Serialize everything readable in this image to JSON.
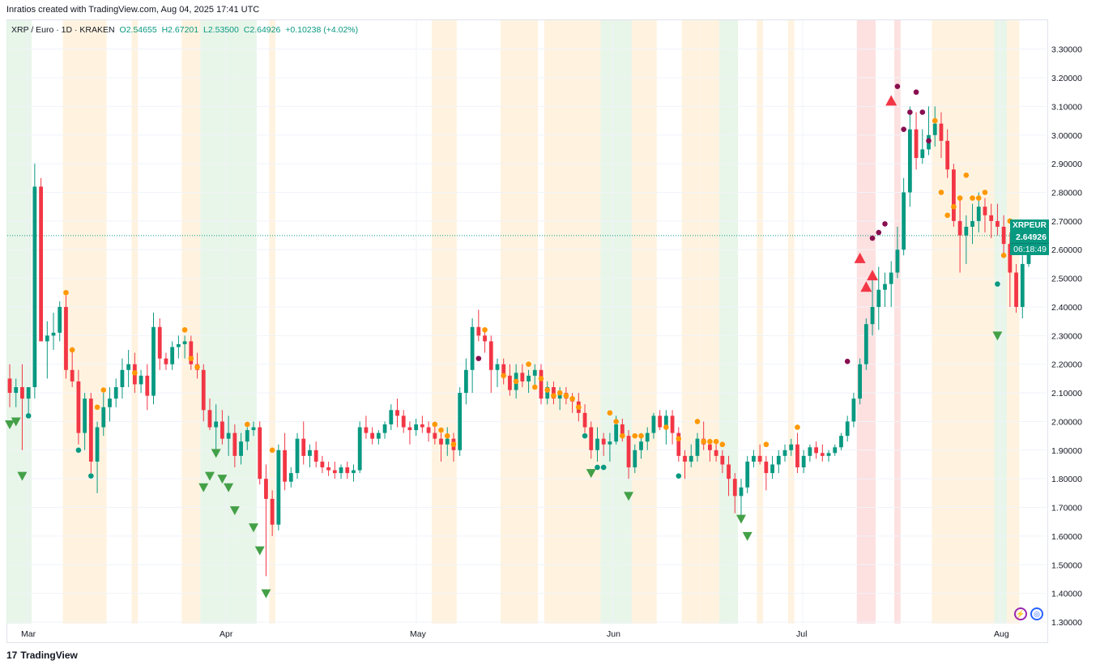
{
  "credit": "Inratios created with TradingView.com, Aug 04, 2025 17:41 UTC",
  "legend": {
    "symbol": "XRP / Euro · 1D · KRAKEN",
    "open": "O2.54655",
    "high": "H2.67201",
    "low": "L2.53500",
    "close": "C2.64926",
    "change": "+0.10238 (+4.02%)"
  },
  "price_tag": {
    "symbol": "XRPEUR",
    "price": "2.64926",
    "countdown": "06:18:49"
  },
  "footer": {
    "brand": "TradingView"
  },
  "colors": {
    "up": "#089981",
    "down": "#f23645",
    "bull_band": "#e8f5e9",
    "warn_band": "#fff3e0",
    "bear_band": "#fde0e0",
    "dot_orange": "#ff9800",
    "dot_purple": "#880e4f",
    "dot_green": "#089981",
    "tri_green": "#43a047",
    "tri_red": "#f23645"
  },
  "chart_data": {
    "type": "candlestick",
    "ylim": [
      1.3,
      3.35
    ],
    "price_ticks": [
      "3.30000",
      "3.20000",
      "3.10000",
      "3.00000",
      "2.90000",
      "2.80000",
      "2.70000",
      "2.60000",
      "2.50000",
      "2.40000",
      "2.30000",
      "2.20000",
      "2.10000",
      "2.00000",
      "1.90000",
      "1.80000",
      "1.70000",
      "1.60000",
      "1.50000",
      "1.40000",
      "1.30000"
    ],
    "months": [
      "Mar",
      "Apr",
      "May",
      "Jun",
      "Jul",
      "Aug"
    ],
    "current_price": 2.64926,
    "candles": [
      [
        2.15,
        2.2,
        2.05,
        2.1
      ],
      [
        2.1,
        2.15,
        2.05,
        2.12
      ],
      [
        2.12,
        2.2,
        1.9,
        2.08
      ],
      [
        2.08,
        2.12,
        2.02,
        2.12
      ],
      [
        2.12,
        2.9,
        2.08,
        2.82
      ],
      [
        2.82,
        2.85,
        2.3,
        2.28
      ],
      [
        2.28,
        2.35,
        2.15,
        2.3
      ],
      [
        2.3,
        2.38,
        2.25,
        2.31
      ],
      [
        2.31,
        2.42,
        2.28,
        2.4
      ],
      [
        2.4,
        2.44,
        2.15,
        2.18
      ],
      [
        2.18,
        2.26,
        2.12,
        2.14
      ],
      [
        2.14,
        2.18,
        1.92,
        1.96
      ],
      [
        1.96,
        2.1,
        1.9,
        2.08
      ],
      [
        2.08,
        2.1,
        1.82,
        1.86
      ],
      [
        1.86,
        2.0,
        1.75,
        1.98
      ],
      [
        1.98,
        2.1,
        1.95,
        2.05
      ],
      [
        2.05,
        2.12,
        2.0,
        2.08
      ],
      [
        2.08,
        2.15,
        2.05,
        2.12
      ],
      [
        2.12,
        2.22,
        2.08,
        2.18
      ],
      [
        2.18,
        2.25,
        2.12,
        2.2
      ],
      [
        2.2,
        2.24,
        2.1,
        2.13
      ],
      [
        2.13,
        2.18,
        2.1,
        2.16
      ],
      [
        2.16,
        2.2,
        2.04,
        2.09
      ],
      [
        2.09,
        2.38,
        2.06,
        2.33
      ],
      [
        2.33,
        2.36,
        2.18,
        2.22
      ],
      [
        2.22,
        2.24,
        2.18,
        2.2
      ],
      [
        2.2,
        2.28,
        2.18,
        2.26
      ],
      [
        2.26,
        2.3,
        2.22,
        2.27
      ],
      [
        2.27,
        2.3,
        2.22,
        2.28
      ],
      [
        2.28,
        2.3,
        2.18,
        2.2
      ],
      [
        2.2,
        2.24,
        2.15,
        2.18
      ],
      [
        2.18,
        2.2,
        2.0,
        2.04
      ],
      [
        2.04,
        2.08,
        1.97,
        1.98
      ],
      [
        1.98,
        2.06,
        1.9,
        2.0
      ],
      [
        2.0,
        2.04,
        1.92,
        1.94
      ],
      [
        1.94,
        2.02,
        1.88,
        1.96
      ],
      [
        1.96,
        1.99,
        1.84,
        1.88
      ],
      [
        1.88,
        1.96,
        1.85,
        1.93
      ],
      [
        1.93,
        1.98,
        1.9,
        1.97
      ],
      [
        1.97,
        2.0,
        1.95,
        1.98
      ],
      [
        1.98,
        2.0,
        1.78,
        1.8
      ],
      [
        1.8,
        1.85,
        1.46,
        1.73
      ],
      [
        1.73,
        1.76,
        1.6,
        1.64
      ],
      [
        1.64,
        1.92,
        1.62,
        1.9
      ],
      [
        1.9,
        1.96,
        1.76,
        1.79
      ],
      [
        1.79,
        1.84,
        1.77,
        1.82
      ],
      [
        1.82,
        1.96,
        1.8,
        1.94
      ],
      [
        1.94,
        2.0,
        1.85,
        1.88
      ],
      [
        1.88,
        1.92,
        1.84,
        1.9
      ],
      [
        1.9,
        1.93,
        1.84,
        1.86
      ],
      [
        1.86,
        1.88,
        1.82,
        1.84
      ],
      [
        1.84,
        1.86,
        1.81,
        1.83
      ],
      [
        1.83,
        1.86,
        1.8,
        1.82
      ],
      [
        1.82,
        1.85,
        1.8,
        1.84
      ],
      [
        1.84,
        1.86,
        1.8,
        1.82
      ],
      [
        1.82,
        1.85,
        1.79,
        1.83
      ],
      [
        1.83,
        2.0,
        1.82,
        1.98
      ],
      [
        1.98,
        2.02,
        1.94,
        1.96
      ],
      [
        1.96,
        1.98,
        1.92,
        1.94
      ],
      [
        1.94,
        1.97,
        1.92,
        1.96
      ],
      [
        1.96,
        2.0,
        1.94,
        1.99
      ],
      [
        1.99,
        2.06,
        1.97,
        2.04
      ],
      [
        2.04,
        2.08,
        1.98,
        2.02
      ],
      [
        2.02,
        2.04,
        1.96,
        1.98
      ],
      [
        1.98,
        2.0,
        1.92,
        1.97
      ],
      [
        1.97,
        2.01,
        1.95,
        1.99
      ],
      [
        1.99,
        2.02,
        1.96,
        1.98
      ],
      [
        1.98,
        2.0,
        1.93,
        1.96
      ],
      [
        1.96,
        2.0,
        1.92,
        1.94
      ],
      [
        1.94,
        1.96,
        1.86,
        1.92
      ],
      [
        1.92,
        1.98,
        1.88,
        1.94
      ],
      [
        1.94,
        1.96,
        1.86,
        1.9
      ],
      [
        1.9,
        2.12,
        1.88,
        2.1
      ],
      [
        2.1,
        2.22,
        2.06,
        2.18
      ],
      [
        2.18,
        2.36,
        2.1,
        2.33
      ],
      [
        2.33,
        2.39,
        2.28,
        2.3
      ],
      [
        2.3,
        2.32,
        2.24,
        2.28
      ],
      [
        2.28,
        2.3,
        2.1,
        2.18
      ],
      [
        2.18,
        2.22,
        2.12,
        2.2
      ],
      [
        2.2,
        2.22,
        2.13,
        2.16
      ],
      [
        2.16,
        2.2,
        2.09,
        2.11
      ],
      [
        2.11,
        2.2,
        2.08,
        2.17
      ],
      [
        2.17,
        2.2,
        2.12,
        2.14
      ],
      [
        2.14,
        2.18,
        2.1,
        2.16
      ],
      [
        2.16,
        2.2,
        2.12,
        2.18
      ],
      [
        2.18,
        2.2,
        2.06,
        2.08
      ],
      [
        2.08,
        2.14,
        2.06,
        2.12
      ],
      [
        2.12,
        2.14,
        2.06,
        2.08
      ],
      [
        2.08,
        2.12,
        2.04,
        2.1
      ],
      [
        2.1,
        2.12,
        2.06,
        2.08
      ],
      [
        2.08,
        2.1,
        2.03,
        2.07
      ],
      [
        2.07,
        2.1,
        2.0,
        2.03
      ],
      [
        2.03,
        2.06,
        1.96,
        1.98
      ],
      [
        1.98,
        2.0,
        1.87,
        1.9
      ],
      [
        1.9,
        1.98,
        1.86,
        1.94
      ],
      [
        1.94,
        1.96,
        1.88,
        1.92
      ],
      [
        1.92,
        1.96,
        1.86,
        1.93
      ],
      [
        1.93,
        2.02,
        1.92,
        1.99
      ],
      [
        1.99,
        2.01,
        1.93,
        1.95
      ],
      [
        1.95,
        1.97,
        1.8,
        1.84
      ],
      [
        1.84,
        1.92,
        1.82,
        1.9
      ],
      [
        1.9,
        1.96,
        1.87,
        1.93
      ],
      [
        1.93,
        1.98,
        1.9,
        1.96
      ],
      [
        1.96,
        2.03,
        1.94,
        2.02
      ],
      [
        2.02,
        2.04,
        1.97,
        1.98
      ],
      [
        1.98,
        2.04,
        1.92,
        2.02
      ],
      [
        2.02,
        2.04,
        1.92,
        1.96
      ],
      [
        1.96,
        1.98,
        1.86,
        1.88
      ],
      [
        1.88,
        1.9,
        1.8,
        1.86
      ],
      [
        1.86,
        1.92,
        1.84,
        1.88
      ],
      [
        1.88,
        1.96,
        1.86,
        1.94
      ],
      [
        1.94,
        2.0,
        1.9,
        1.92
      ],
      [
        1.92,
        1.94,
        1.86,
        1.9
      ],
      [
        1.9,
        1.92,
        1.86,
        1.88
      ],
      [
        1.88,
        1.9,
        1.82,
        1.85
      ],
      [
        1.85,
        1.88,
        1.74,
        1.8
      ],
      [
        1.8,
        1.82,
        1.68,
        1.74
      ],
      [
        1.74,
        1.8,
        1.66,
        1.77
      ],
      [
        1.77,
        1.88,
        1.75,
        1.86
      ],
      [
        1.86,
        1.9,
        1.84,
        1.88
      ],
      [
        1.88,
        1.92,
        1.85,
        1.86
      ],
      [
        1.86,
        1.88,
        1.76,
        1.82
      ],
      [
        1.82,
        1.88,
        1.8,
        1.85
      ],
      [
        1.85,
        1.9,
        1.82,
        1.88
      ],
      [
        1.88,
        1.92,
        1.86,
        1.9
      ],
      [
        1.9,
        1.94,
        1.88,
        1.92
      ],
      [
        1.92,
        1.96,
        1.82,
        1.84
      ],
      [
        1.84,
        1.9,
        1.82,
        1.88
      ],
      [
        1.88,
        1.92,
        1.86,
        1.91
      ],
      [
        1.91,
        1.93,
        1.87,
        1.89
      ],
      [
        1.89,
        1.92,
        1.86,
        1.88
      ],
      [
        1.88,
        1.9,
        1.86,
        1.89
      ],
      [
        1.89,
        1.92,
        1.88,
        1.91
      ],
      [
        1.91,
        1.96,
        1.9,
        1.95
      ],
      [
        1.95,
        2.02,
        1.93,
        2.0
      ],
      [
        2.0,
        2.1,
        1.98,
        2.08
      ],
      [
        2.08,
        2.22,
        2.06,
        2.2
      ],
      [
        2.2,
        2.36,
        2.18,
        2.34
      ],
      [
        2.34,
        2.5,
        2.3,
        2.4
      ],
      [
        2.4,
        2.54,
        2.32,
        2.46
      ],
      [
        2.46,
        2.52,
        2.4,
        2.48
      ],
      [
        2.48,
        2.56,
        2.4,
        2.52
      ],
      [
        2.52,
        2.68,
        2.5,
        2.6
      ],
      [
        2.6,
        2.85,
        2.58,
        2.8
      ],
      [
        2.8,
        3.1,
        2.75,
        3.02
      ],
      [
        3.02,
        3.08,
        2.88,
        2.92
      ],
      [
        2.92,
        3.02,
        2.9,
        2.95
      ],
      [
        2.95,
        3.1,
        2.93,
        3.0
      ],
      [
        3.0,
        3.1,
        2.96,
        3.04
      ],
      [
        3.04,
        3.08,
        2.92,
        2.98
      ],
      [
        2.98,
        3.02,
        2.85,
        2.88
      ],
      [
        2.88,
        2.9,
        2.68,
        2.7
      ],
      [
        2.7,
        2.78,
        2.52,
        2.65
      ],
      [
        2.65,
        2.72,
        2.55,
        2.68
      ],
      [
        2.68,
        2.76,
        2.62,
        2.7
      ],
      [
        2.7,
        2.8,
        2.66,
        2.75
      ],
      [
        2.75,
        2.78,
        2.66,
        2.72
      ],
      [
        2.72,
        2.76,
        2.64,
        2.7
      ],
      [
        2.7,
        2.76,
        2.65,
        2.68
      ],
      [
        2.68,
        2.72,
        2.58,
        2.62
      ],
      [
        2.62,
        2.66,
        2.4,
        2.52
      ],
      [
        2.52,
        2.55,
        2.38,
        2.4
      ],
      [
        2.4,
        2.58,
        2.36,
        2.55
      ],
      [
        2.55,
        2.67,
        2.54,
        2.65
      ]
    ]
  }
}
